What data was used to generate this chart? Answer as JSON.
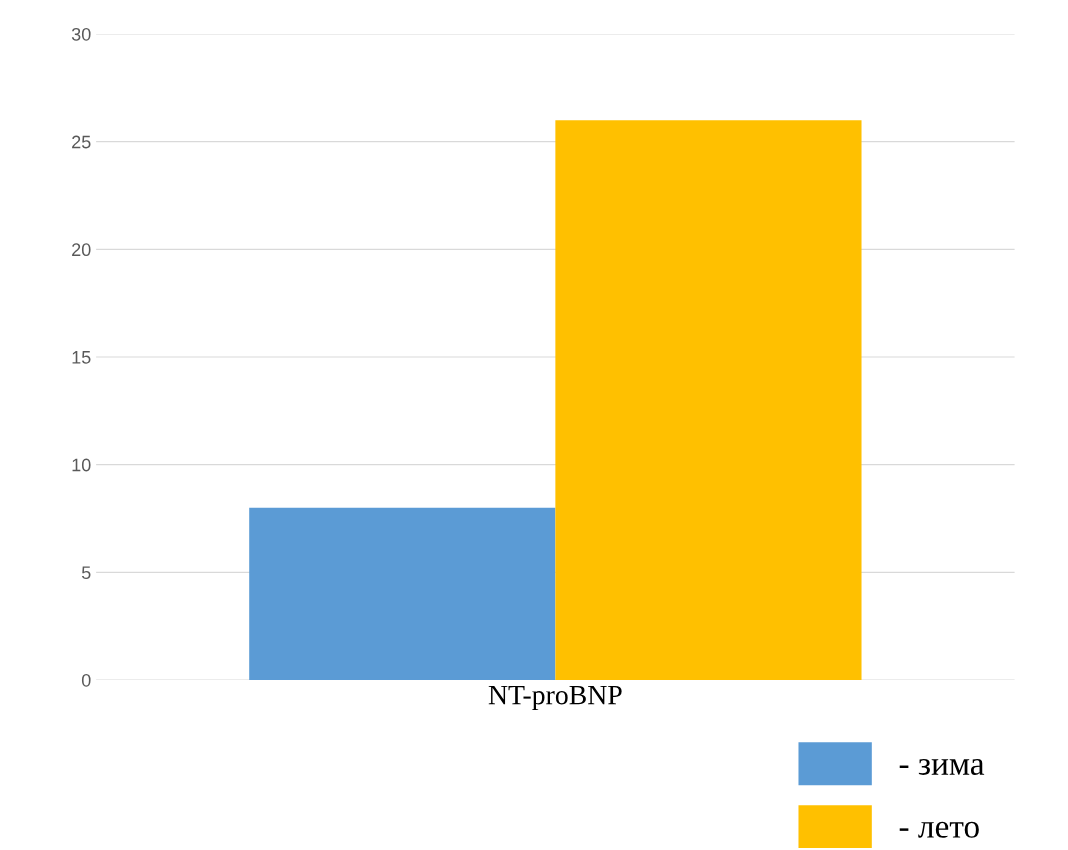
{
  "chart_data": {
    "type": "bar",
    "categories": [
      "NT-proBNP"
    ],
    "series": [
      {
        "name": "- зима",
        "color": "#5b9bd5",
        "values": [
          8
        ]
      },
      {
        "name": "- лето",
        "color": "#ffc000",
        "values": [
          26
        ]
      }
    ],
    "ylim": [
      0,
      30
    ],
    "yticks": [
      0,
      5,
      10,
      15,
      20,
      25,
      30
    ],
    "grid": "y",
    "legend": "bottom right"
  }
}
